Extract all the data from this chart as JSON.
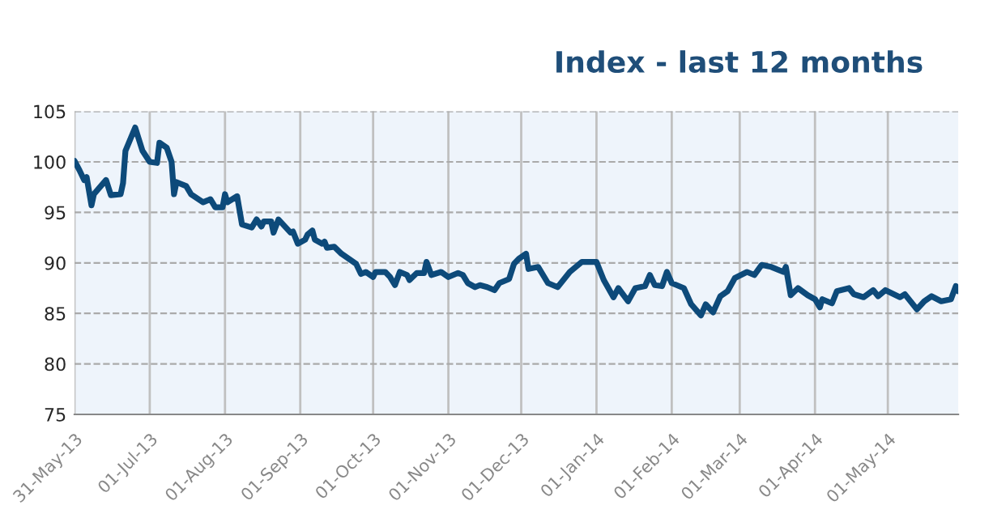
{
  "chart_data": {
    "type": "line",
    "title": "Index - last 12 months",
    "x": [
      "2013-05-31",
      "2013-06-02",
      "2013-06-04",
      "2013-06-05",
      "2013-06-07",
      "2013-06-08",
      "2013-06-13",
      "2013-06-15",
      "2013-06-19",
      "2013-06-20",
      "2013-06-21",
      "2013-06-25",
      "2013-06-28",
      "2013-07-01",
      "2013-07-04",
      "2013-07-05",
      "2013-07-08",
      "2013-07-10",
      "2013-07-11",
      "2013-07-12",
      "2013-07-16",
      "2013-07-18",
      "2013-07-23",
      "2013-07-26",
      "2013-07-28",
      "2013-07-31",
      "2013-08-01",
      "2013-08-02",
      "2013-08-06",
      "2013-08-08",
      "2013-08-12",
      "2013-08-14",
      "2013-08-16",
      "2013-08-17",
      "2013-08-20",
      "2013-08-21",
      "2013-08-23",
      "2013-08-28",
      "2013-08-29",
      "2013-08-31",
      "2013-09-03",
      "2013-09-04",
      "2013-09-06",
      "2013-09-07",
      "2013-09-10",
      "2013-09-11",
      "2013-09-12",
      "2013-09-15",
      "2013-09-18",
      "2013-09-21",
      "2013-09-24",
      "2013-09-26",
      "2013-09-28",
      "2013-10-01",
      "2013-10-02",
      "2013-10-06",
      "2013-10-08",
      "2013-10-10",
      "2013-10-12",
      "2013-10-15",
      "2013-10-16",
      "2013-10-19",
      "2013-10-22",
      "2013-10-23",
      "2013-10-25",
      "2013-10-29",
      "2013-11-01",
      "2013-11-05",
      "2013-11-07",
      "2013-11-09",
      "2013-11-12",
      "2013-11-14",
      "2013-11-17",
      "2013-11-20",
      "2013-11-22",
      "2013-11-26",
      "2013-11-28",
      "2013-11-30",
      "2013-12-03",
      "2013-12-04",
      "2013-12-08",
      "2013-12-12",
      "2013-12-16",
      "2013-12-21",
      "2013-12-26",
      "2014-01-01",
      "2014-01-04",
      "2014-01-08",
      "2014-01-10",
      "2014-01-14",
      "2014-01-17",
      "2014-01-21",
      "2014-01-23",
      "2014-01-25",
      "2014-01-28",
      "2014-01-30",
      "2014-02-01",
      "2014-02-06",
      "2014-02-09",
      "2014-02-13",
      "2014-02-15",
      "2014-02-18",
      "2014-02-21",
      "2014-02-24",
      "2014-02-27",
      "2014-03-04",
      "2014-03-07",
      "2014-03-10",
      "2014-03-14",
      "2014-03-19",
      "2014-03-20",
      "2014-03-22",
      "2014-03-25",
      "2014-03-29",
      "2014-04-01",
      "2014-04-03",
      "2014-04-04",
      "2014-04-08",
      "2014-04-10",
      "2014-04-15",
      "2014-04-17",
      "2014-04-21",
      "2014-04-25",
      "2014-04-27",
      "2014-04-30",
      "2014-05-06",
      "2014-05-08",
      "2014-05-13",
      "2014-05-16",
      "2014-05-19",
      "2014-05-23",
      "2014-05-27",
      "2014-05-29",
      "2014-05-30"
    ],
    "series": [
      {
        "color": "#0d4a7a",
        "values": [
          100.1,
          99.2,
          98.2,
          98.5,
          95.7,
          96.8,
          98.2,
          96.7,
          96.8,
          97.9,
          101.1,
          103.4,
          101.1,
          100.0,
          99.9,
          101.9,
          101.4,
          100.0,
          96.8,
          98.0,
          97.6,
          96.8,
          96.0,
          96.3,
          95.5,
          95.5,
          96.8,
          96.0,
          96.6,
          93.8,
          93.5,
          94.3,
          93.6,
          94.1,
          94.1,
          93.0,
          94.3,
          93.0,
          93.1,
          91.9,
          92.3,
          92.8,
          93.2,
          92.3,
          91.9,
          92.1,
          91.5,
          91.6,
          90.9,
          90.4,
          89.9,
          88.9,
          89.1,
          88.6,
          89.1,
          89.1,
          88.6,
          87.8,
          89.1,
          88.8,
          88.3,
          89.0,
          89.0,
          90.1,
          88.8,
          89.1,
          88.6,
          89.0,
          88.8,
          88.0,
          87.6,
          87.8,
          87.6,
          87.3,
          88.0,
          88.4,
          89.9,
          90.4,
          90.9,
          89.4,
          89.6,
          88.0,
          87.6,
          89.1,
          90.1,
          90.1,
          88.3,
          86.6,
          87.5,
          86.2,
          87.5,
          87.7,
          88.8,
          87.8,
          87.7,
          89.1,
          88.0,
          87.5,
          85.9,
          84.8,
          85.9,
          85.1,
          86.7,
          87.2,
          88.5,
          89.1,
          88.8,
          89.8,
          89.6,
          89.1,
          89.6,
          86.8,
          87.5,
          86.8,
          86.4,
          85.6,
          86.4,
          86.0,
          87.2,
          87.5,
          86.9,
          86.6,
          87.3,
          86.7,
          87.3,
          86.6,
          86.9,
          85.4,
          86.2,
          86.7,
          86.2,
          86.4,
          87.7,
          87.2
        ]
      }
    ],
    "xlim": [
      "2013-05-31",
      "2014-05-30"
    ],
    "xticks": [
      {
        "value": "2013-05-31",
        "label": "31-May-13"
      },
      {
        "value": "2013-07-01",
        "label": "01-Jul-13"
      },
      {
        "value": "2013-08-01",
        "label": "01-Aug-13"
      },
      {
        "value": "2013-09-01",
        "label": "01-Sep-13"
      },
      {
        "value": "2013-10-01",
        "label": "01-Oct-13"
      },
      {
        "value": "2013-11-01",
        "label": "01-Nov-13"
      },
      {
        "value": "2013-12-01",
        "label": "01-Dec-13"
      },
      {
        "value": "2014-01-01",
        "label": "01-Jan-14"
      },
      {
        "value": "2014-02-01",
        "label": "01-Feb-14"
      },
      {
        "value": "2014-03-01",
        "label": "01-Mar-14"
      },
      {
        "value": "2014-04-01",
        "label": "01-Apr-14"
      },
      {
        "value": "2014-05-01",
        "label": "01-May-14"
      }
    ],
    "ylim": [
      75,
      105
    ],
    "yticks": [
      75,
      80,
      85,
      90,
      95,
      100,
      105
    ],
    "grid": true,
    "line_style": "solid",
    "marker": "none"
  }
}
